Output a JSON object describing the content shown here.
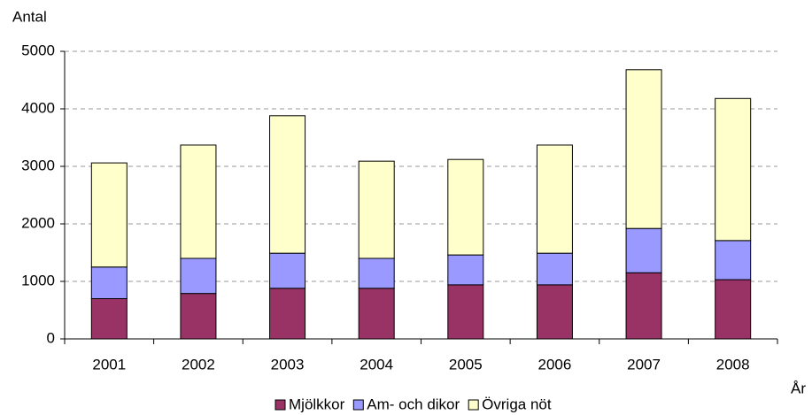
{
  "chart_data": {
    "type": "stacked_bar",
    "y_label": "Antal",
    "x_label": "År",
    "categories": [
      "2001",
      "2002",
      "2003",
      "2004",
      "2005",
      "2006",
      "2007",
      "2008"
    ],
    "series": [
      {
        "name": "Mjölkkor",
        "color": "#993366",
        "values": [
          700,
          790,
          880,
          880,
          940,
          940,
          1150,
          1030
        ]
      },
      {
        "name": "Am- och dikor",
        "color": "#9999ff",
        "values": [
          550,
          610,
          610,
          520,
          520,
          550,
          770,
          680
        ]
      },
      {
        "name": "Övriga nöt",
        "color": "#ffffcc",
        "values": [
          1810,
          1970,
          2390,
          1690,
          1660,
          1880,
          2760,
          2470
        ]
      }
    ],
    "ylim": [
      0,
      5000
    ],
    "yticks": [
      0,
      1000,
      2000,
      3000,
      4000,
      5000
    ],
    "grid": true,
    "legend": "bottom"
  }
}
